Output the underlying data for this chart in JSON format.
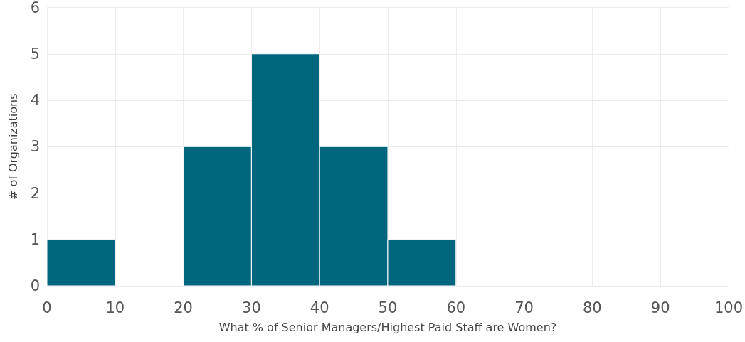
{
  "chart_data": {
    "type": "histogram",
    "xlabel": "What % of Senior Managers/Highest Paid Staff are Women?",
    "ylabel": "# of Organizations",
    "bins": [
      0,
      10,
      20,
      30,
      40,
      50,
      60,
      70,
      80,
      90,
      100
    ],
    "values": [
      1,
      0,
      3,
      5,
      3,
      1,
      0,
      0,
      0,
      0
    ],
    "color": "#00667e",
    "xlim": [
      0,
      100
    ],
    "xticks": [
      0,
      10,
      20,
      30,
      40,
      50,
      60,
      70,
      80,
      90,
      100
    ],
    "ylim": [
      0,
      6
    ],
    "yticks": [
      0,
      1,
      2,
      3,
      4,
      5,
      6
    ],
    "grid": true
  }
}
